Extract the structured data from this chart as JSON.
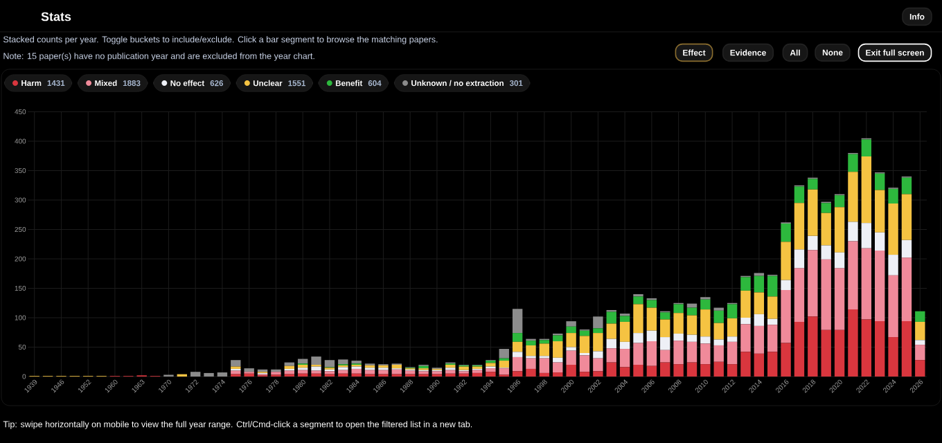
{
  "chart_data": {
    "type": "bar",
    "stacked": true,
    "title": "Stats",
    "subtitle": "Stacked counts per year. Toggle buckets to include/exclude. Click a bar segment to browse the matching papers.",
    "annotations": [
      "Note: 15 paper(s) have no publication year and are excluded from the year chart.",
      "Tip: swipe horizontally on mobile to view the full year range. Ctrl/Cmd-click a segment to open the filtered list in a new tab.",
      "Info",
      "Effect",
      "Evidence",
      "All",
      "None",
      "Exit full screen",
      "1431",
      "1883",
      "626",
      "1551",
      "604",
      "301"
    ],
    "categories": [
      "1939",
      null,
      "1946",
      null,
      "1952",
      null,
      "1960",
      null,
      "1963",
      null,
      "1970",
      null,
      "1972",
      null,
      "1974",
      null,
      "1976",
      null,
      "1978",
      null,
      "1980",
      null,
      "1982",
      null,
      "1984",
      null,
      "1986",
      null,
      "1988",
      null,
      "1990",
      null,
      "1992",
      null,
      "1994",
      null,
      "1996",
      null,
      "1998",
      null,
      "2000",
      null,
      "2002",
      null,
      "2004",
      null,
      "2006",
      null,
      "2008",
      null,
      "2010",
      null,
      "2012",
      null,
      "2014",
      null,
      "2016",
      null,
      "2018",
      null,
      "2020",
      null,
      "2022",
      null,
      "2024",
      null,
      "2026"
    ],
    "series": [
      {
        "name": "Harm",
        "color": "#d9363e",
        "values": [
          0,
          0,
          0,
          0,
          0,
          0,
          1,
          1,
          2,
          1,
          0,
          0,
          0,
          0,
          0,
          4,
          5,
          2,
          3,
          4,
          5,
          5,
          4,
          5,
          5,
          4,
          4,
          4,
          4,
          4,
          4,
          5,
          5,
          6,
          8,
          3,
          9,
          13,
          6,
          7,
          20,
          8,
          9,
          24,
          16,
          20,
          18,
          24,
          21,
          24,
          21,
          25,
          21,
          42,
          39,
          42,
          57,
          93,
          102,
          79,
          79,
          114,
          97,
          94,
          67,
          94,
          28
        ]
      },
      {
        "name": "Mixed",
        "color": "#f08a9a",
        "values": [
          0,
          0,
          0,
          0,
          0,
          0,
          0,
          0,
          0,
          0,
          0,
          0,
          0,
          0,
          0,
          6,
          3,
          2,
          5,
          6,
          6,
          5,
          5,
          6,
          8,
          7,
          7,
          8,
          6,
          5,
          5,
          6,
          4,
          5,
          6,
          11,
          24,
          18,
          25,
          17,
          24,
          28,
          22,
          24,
          31,
          37,
          42,
          21,
          40,
          35,
          35,
          28,
          38,
          47,
          47,
          46,
          90,
          91,
          113,
          120,
          105,
          116,
          121,
          120,
          105,
          108,
          26
        ]
      },
      {
        "name": "No effect",
        "color": "#eef0f6",
        "values": [
          0,
          0,
          0,
          0,
          0,
          0,
          0,
          0,
          0,
          0,
          0,
          0,
          0,
          0,
          0,
          3,
          0,
          2,
          0,
          3,
          4,
          7,
          3,
          5,
          4,
          4,
          4,
          2,
          2,
          2,
          2,
          4,
          2,
          2,
          3,
          1,
          9,
          4,
          4,
          8,
          6,
          4,
          12,
          16,
          12,
          17,
          18,
          22,
          12,
          12,
          12,
          10,
          9,
          11,
          20,
          10,
          17,
          32,
          24,
          24,
          27,
          33,
          43,
          31,
          35,
          30,
          8
        ]
      },
      {
        "name": "Unclear",
        "color": "#f5c342",
        "values": [
          1,
          1,
          1,
          1,
          1,
          1,
          0,
          0,
          0,
          0,
          0,
          4,
          0,
          0,
          0,
          4,
          0,
          2,
          0,
          5,
          5,
          3,
          3,
          3,
          3,
          4,
          4,
          6,
          2,
          3,
          2,
          5,
          6,
          4,
          6,
          12,
          17,
          18,
          21,
          28,
          24,
          29,
          31,
          26,
          34,
          49,
          39,
          30,
          35,
          33,
          46,
          28,
          31,
          46,
          37,
          38,
          65,
          79,
          79,
          55,
          77,
          85,
          113,
          72,
          87,
          78,
          31
        ]
      },
      {
        "name": "Benefit",
        "color": "#2db83d",
        "values": [
          0,
          0,
          0,
          0,
          0,
          0,
          0,
          0,
          0,
          0,
          0,
          0,
          0,
          0,
          0,
          0,
          0,
          0,
          0,
          0,
          2,
          0,
          1,
          2,
          2,
          0,
          0,
          0,
          1,
          4,
          0,
          2,
          2,
          2,
          4,
          4,
          15,
          8,
          6,
          10,
          11,
          9,
          8,
          20,
          10,
          13,
          13,
          12,
          15,
          13,
          17,
          21,
          24,
          23,
          28,
          35,
          31,
          28,
          18,
          17,
          20,
          30,
          29,
          28,
          25,
          28,
          18
        ]
      },
      {
        "name": "Unknown / no extraction",
        "color": "#8c8c8c",
        "values": [
          0,
          0,
          0,
          0,
          0,
          0,
          0,
          0,
          0,
          0,
          3,
          0,
          8,
          6,
          7,
          11,
          6,
          4,
          4,
          6,
          8,
          14,
          12,
          8,
          5,
          3,
          2,
          2,
          1,
          2,
          2,
          2,
          1,
          1,
          1,
          16,
          41,
          3,
          2,
          3,
          9,
          2,
          20,
          3,
          4,
          4,
          3,
          2,
          2,
          7,
          4,
          5,
          2,
          2,
          5,
          2,
          2,
          2,
          2,
          2,
          2,
          2,
          2,
          2,
          2,
          2,
          0
        ]
      }
    ],
    "ylim": [
      0,
      450
    ],
    "yticks": [
      0,
      50,
      100,
      150,
      200,
      250,
      300,
      350,
      400,
      450
    ],
    "grid": true,
    "legend": "top"
  }
}
